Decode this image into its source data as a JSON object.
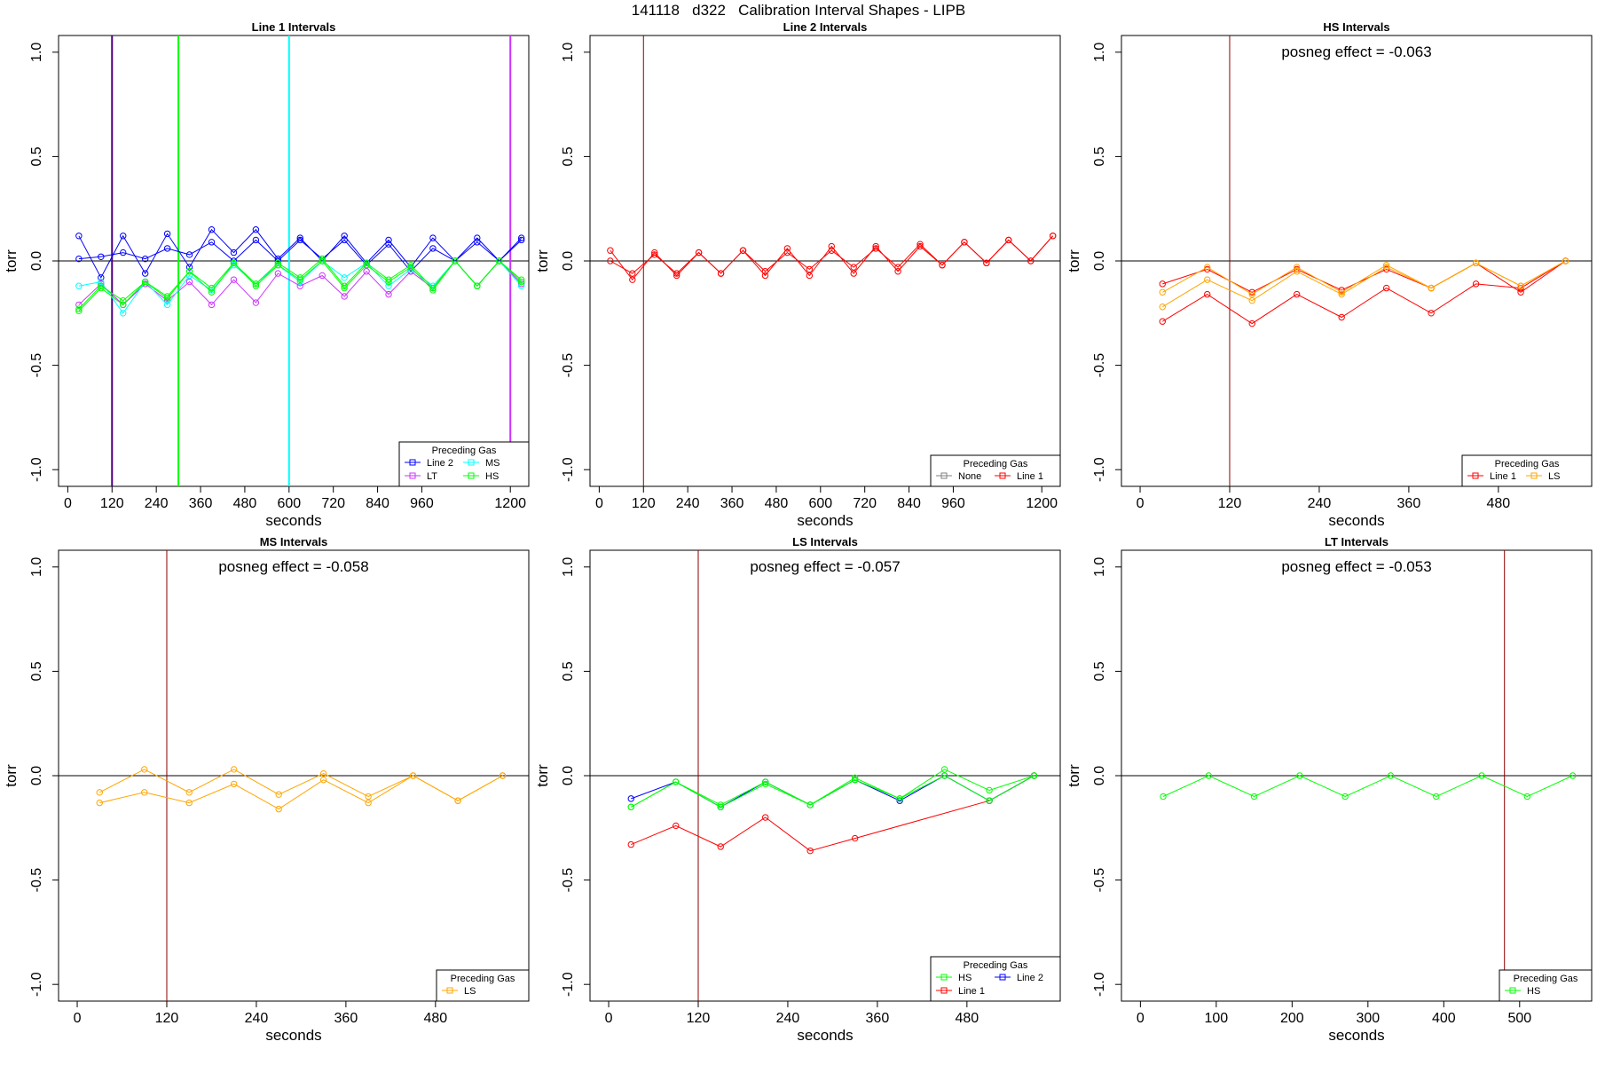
{
  "page_title": "141118   d322   Calibration Interval Shapes - LIPB",
  "colors": {
    "Line 2": "#0000FF",
    "MS": "#00FFFF",
    "LT": "#CC33FF",
    "HS": "#00FF00",
    "None": "#808080",
    "Line 1": "#FF0000",
    "LS": "#FFA500",
    "axis": "#000000",
    "marker_line": "#8B0000"
  },
  "chart_data": [
    {
      "type": "line",
      "title": "Line 1 Intervals",
      "xlabel": "seconds",
      "ylabel": "torr",
      "xlim": [
        -25,
        1250
      ],
      "ylim": [
        -1.08,
        1.08
      ],
      "xticks": [
        0,
        120,
        240,
        360,
        480,
        600,
        720,
        840,
        960,
        1200
      ],
      "yticks": [
        -1.0,
        -0.5,
        0.0,
        0.5,
        1.0
      ],
      "hline": 0,
      "vlines": [
        {
          "x": 120,
          "color": "#4B0082"
        },
        {
          "x": 300,
          "color": "#00FF00"
        },
        {
          "x": 600,
          "color": "#00FFFF"
        },
        {
          "x": 1200,
          "color": "#CC33FF"
        }
      ],
      "legend": {
        "title": "Preceding Gas",
        "position": "bottom-right",
        "entries": [
          "Line 2",
          "LT",
          "MS",
          "HS"
        ]
      },
      "series": [
        {
          "name": "Line 2",
          "x": [
            30,
            90,
            150,
            210,
            270,
            330,
            390,
            450,
            510,
            570,
            630,
            690,
            750,
            810,
            870,
            930,
            990,
            1050,
            1110,
            1170,
            1230
          ],
          "values": [
            0.12,
            -0.08,
            0.12,
            -0.06,
            0.13,
            -0.03,
            0.15,
            0.04,
            0.15,
            0.01,
            0.11,
            0.0,
            0.12,
            -0.01,
            0.1,
            -0.03,
            0.11,
            0.0,
            0.11,
            0.0,
            0.11
          ]
        },
        {
          "name": "Line 2",
          "x": [
            30,
            90,
            150,
            210,
            270,
            330,
            390,
            450,
            510,
            570,
            630,
            690,
            750,
            810,
            870,
            930,
            990,
            1050,
            1110,
            1170,
            1230
          ],
          "values": [
            0.01,
            0.02,
            0.04,
            0.01,
            0.06,
            0.03,
            0.09,
            0.0,
            0.1,
            0.0,
            0.1,
            0.01,
            0.1,
            -0.02,
            0.08,
            -0.05,
            0.06,
            0.0,
            0.09,
            0.0,
            0.1
          ]
        },
        {
          "name": "LT",
          "x": [
            30,
            90,
            150,
            210,
            270,
            330,
            390,
            450,
            510,
            570,
            630,
            690,
            750,
            810,
            870,
            930,
            990,
            1050,
            1110,
            1170,
            1230
          ],
          "values": [
            -0.21,
            -0.11,
            -0.21,
            -0.11,
            -0.19,
            -0.1,
            -0.21,
            -0.09,
            -0.2,
            -0.06,
            -0.12,
            -0.07,
            -0.17,
            -0.05,
            -0.16,
            -0.05,
            -0.13,
            0.0,
            -0.12,
            0.0,
            -0.11
          ]
        },
        {
          "name": "MS",
          "x": [
            30,
            90,
            150,
            210,
            270,
            330,
            390,
            450,
            510,
            570,
            630,
            690,
            750,
            810,
            870,
            930,
            990,
            1050,
            1110,
            1170,
            1230
          ],
          "values": [
            -0.12,
            -0.1,
            -0.25,
            -0.1,
            -0.21,
            -0.07,
            -0.14,
            -0.02,
            -0.11,
            -0.02,
            -0.1,
            0.0,
            -0.08,
            -0.01,
            -0.12,
            -0.04,
            -0.12,
            0.0,
            -0.12,
            0.0,
            -0.12
          ]
        },
        {
          "name": "HS",
          "x": [
            30,
            90,
            150,
            210,
            270,
            330,
            390,
            450,
            510,
            570,
            630,
            690,
            750,
            810,
            870,
            930,
            990,
            1050,
            1110,
            1170,
            1230
          ],
          "values": [
            -0.24,
            -0.13,
            -0.21,
            -0.1,
            -0.18,
            -0.05,
            -0.15,
            -0.01,
            -0.12,
            -0.02,
            -0.09,
            0.0,
            -0.13,
            -0.02,
            -0.1,
            -0.03,
            -0.14,
            0.0,
            -0.12,
            0.0,
            -0.09
          ]
        },
        {
          "name": "HS",
          "x": [
            30,
            90,
            150,
            210,
            270,
            330,
            390,
            450,
            510,
            570,
            630,
            690,
            750,
            810,
            870,
            930,
            990,
            1050,
            1110,
            1170,
            1230
          ],
          "values": [
            -0.23,
            -0.12,
            -0.19,
            -0.1,
            -0.17,
            -0.05,
            -0.13,
            -0.01,
            -0.11,
            -0.01,
            -0.08,
            0.01,
            -0.12,
            -0.01,
            -0.09,
            -0.02,
            -0.13,
            0.0,
            -0.12,
            0.0,
            -0.1
          ]
        }
      ]
    },
    {
      "type": "line",
      "title": "Line 2 Intervals",
      "xlabel": "seconds",
      "ylabel": "torr",
      "xlim": [
        -25,
        1250
      ],
      "ylim": [
        -1.08,
        1.08
      ],
      "xticks": [
        0,
        120,
        240,
        360,
        480,
        600,
        720,
        840,
        960,
        1200
      ],
      "yticks": [
        -1.0,
        -0.5,
        0.0,
        0.5,
        1.0
      ],
      "hline": 0,
      "vlines": [
        {
          "x": 120,
          "color": "#8B0000"
        }
      ],
      "legend": {
        "title": "Preceding Gas",
        "position": "bottom-right",
        "entries": [
          "None",
          "Line 1"
        ]
      },
      "series": [
        {
          "name": "Line 1",
          "x": [
            30,
            90,
            150,
            210,
            270,
            330,
            390,
            450,
            510,
            570,
            630,
            690,
            750,
            810,
            870,
            930,
            990,
            1050,
            1110,
            1170,
            1230
          ],
          "values": [
            0.05,
            -0.09,
            0.04,
            -0.07,
            0.04,
            -0.06,
            0.05,
            -0.07,
            0.06,
            -0.07,
            0.07,
            -0.06,
            0.07,
            -0.05,
            0.07,
            -0.02,
            0.09,
            -0.01,
            0.1,
            0.0,
            0.12
          ]
        },
        {
          "name": "Line 1",
          "x": [
            30,
            90,
            150,
            210,
            270,
            330,
            390,
            450,
            510,
            570,
            630,
            690,
            750,
            810,
            870,
            930,
            990,
            1050,
            1110,
            1170,
            1230
          ],
          "values": [
            0.0,
            -0.06,
            0.03,
            -0.06,
            0.04,
            -0.06,
            0.05,
            -0.05,
            0.04,
            -0.04,
            0.05,
            -0.03,
            0.06,
            -0.03,
            0.08,
            -0.02,
            0.09,
            -0.01,
            0.1,
            0.0,
            0.12
          ]
        }
      ]
    },
    {
      "type": "line",
      "title": "HS Intervals",
      "xlabel": "seconds",
      "ylabel": "torr",
      "annotation": "posneg effect = -0.063",
      "xlim": [
        -25,
        605
      ],
      "ylim": [
        -1.08,
        1.08
      ],
      "xticks": [
        0,
        120,
        240,
        360,
        480
      ],
      "yticks": [
        -1.0,
        -0.5,
        0.0,
        0.5,
        1.0
      ],
      "hline": 0,
      "vlines": [
        {
          "x": 120,
          "color": "#8B0000"
        }
      ],
      "legend": {
        "title": "Preceding Gas",
        "position": "bottom-right",
        "entries": [
          "Line 1",
          "LS"
        ]
      },
      "series": [
        {
          "name": "Line 1",
          "x": [
            30,
            90,
            150,
            210,
            270,
            330,
            390,
            450,
            510,
            570
          ],
          "values": [
            -0.11,
            -0.04,
            -0.15,
            -0.04,
            -0.14,
            -0.04,
            -0.13,
            -0.01,
            -0.15,
            0.0
          ]
        },
        {
          "name": "Line 1",
          "x": [
            30,
            90,
            150,
            210,
            270,
            330,
            390,
            450,
            510,
            570
          ],
          "values": [
            -0.29,
            -0.16,
            -0.3,
            -0.16,
            -0.27,
            -0.13,
            -0.25,
            -0.11,
            -0.13,
            0.0
          ]
        },
        {
          "name": "LS",
          "x": [
            30,
            90,
            150,
            210,
            270,
            330,
            390,
            450,
            510,
            570
          ],
          "values": [
            -0.15,
            -0.03,
            -0.16,
            -0.03,
            -0.15,
            -0.02,
            -0.13,
            -0.01,
            -0.12,
            0.0
          ]
        },
        {
          "name": "LS",
          "x": [
            30,
            90,
            150,
            210,
            270,
            330,
            390,
            450,
            510,
            570
          ],
          "values": [
            -0.22,
            -0.09,
            -0.19,
            -0.05,
            -0.16,
            -0.03,
            -0.13,
            -0.01,
            -0.12,
            0.0
          ]
        }
      ]
    },
    {
      "type": "line",
      "title": "MS Intervals",
      "xlabel": "seconds",
      "ylabel": "torr",
      "annotation": "posneg effect = -0.058",
      "xlim": [
        -25,
        605
      ],
      "ylim": [
        -1.08,
        1.08
      ],
      "xticks": [
        0,
        120,
        240,
        360,
        480
      ],
      "yticks": [
        -1.0,
        -0.5,
        0.0,
        0.5,
        1.0
      ],
      "hline": 0,
      "vlines": [
        {
          "x": 120,
          "color": "#8B0000"
        }
      ],
      "legend": {
        "title": "Preceding Gas",
        "position": "bottom-right",
        "entries": [
          "LS"
        ]
      },
      "series": [
        {
          "name": "LS",
          "x": [
            30,
            90,
            150,
            210,
            270,
            330,
            390,
            450,
            510,
            570
          ],
          "values": [
            -0.08,
            0.03,
            -0.08,
            0.03,
            -0.09,
            0.01,
            -0.1,
            0.0,
            -0.12,
            0.0
          ]
        },
        {
          "name": "LS",
          "x": [
            30,
            90,
            150,
            210,
            270,
            330,
            390,
            450,
            510,
            570
          ],
          "values": [
            -0.13,
            -0.08,
            -0.13,
            -0.04,
            -0.16,
            -0.02,
            -0.13,
            0.0,
            -0.12,
            0.0
          ]
        }
      ]
    },
    {
      "type": "line",
      "title": "LS Intervals",
      "xlabel": "seconds",
      "ylabel": "torr",
      "annotation": "posneg effect = -0.057",
      "xlim": [
        -25,
        605
      ],
      "ylim": [
        -1.08,
        1.08
      ],
      "xticks": [
        0,
        120,
        240,
        360,
        480
      ],
      "yticks": [
        -1.0,
        -0.5,
        0.0,
        0.5,
        1.0
      ],
      "hline": 0,
      "vlines": [
        {
          "x": 120,
          "color": "#8B0000"
        }
      ],
      "legend": {
        "title": "Preceding Gas",
        "position": "bottom-right",
        "entries": [
          "HS",
          "Line 1",
          "Line 2"
        ]
      },
      "series": [
        {
          "name": "Line 1",
          "x": [
            30,
            90,
            150,
            210,
            270,
            330,
            510,
            570
          ],
          "values": [
            -0.33,
            -0.24,
            -0.34,
            -0.2,
            -0.36,
            -0.3,
            -0.12,
            0.0
          ]
        },
        {
          "name": "Line 2",
          "x": [
            30,
            90,
            150,
            210,
            270,
            330,
            390,
            450,
            510,
            570
          ],
          "values": [
            -0.11,
            -0.03,
            -0.15,
            -0.03,
            -0.14,
            -0.02,
            -0.12,
            0.0,
            -0.12,
            0.0
          ]
        },
        {
          "name": "HS",
          "x": [
            30,
            90,
            150,
            210,
            270,
            330,
            390,
            450,
            510,
            570
          ],
          "values": [
            -0.15,
            -0.03,
            -0.15,
            -0.04,
            -0.14,
            -0.01,
            -0.11,
            0.03,
            -0.07,
            0.0
          ]
        },
        {
          "name": "HS",
          "x": [
            30,
            90,
            150,
            210,
            270,
            330,
            390,
            450,
            510,
            570
          ],
          "values": [
            -0.15,
            -0.03,
            -0.14,
            -0.03,
            -0.14,
            -0.02,
            -0.11,
            0.0,
            -0.12,
            0.0
          ]
        }
      ]
    },
    {
      "type": "line",
      "title": "LT Intervals",
      "xlabel": "seconds",
      "ylabel": "torr",
      "annotation": "posneg effect = -0.053",
      "xlim": [
        -25,
        595
      ],
      "ylim": [
        -1.08,
        1.08
      ],
      "xticks": [
        0,
        100,
        200,
        300,
        400,
        500
      ],
      "yticks": [
        -1.0,
        -0.5,
        0.0,
        0.5,
        1.0
      ],
      "hline": 0,
      "vlines": [
        {
          "x": 480,
          "color": "#8B0000"
        }
      ],
      "legend": {
        "title": "Preceding Gas",
        "position": "bottom-right",
        "entries": [
          "HS"
        ]
      },
      "series": [
        {
          "name": "HS",
          "x": [
            30,
            90,
            150,
            210,
            270,
            330,
            390,
            450,
            510,
            570
          ],
          "values": [
            -0.1,
            0.0,
            -0.1,
            0.0,
            -0.1,
            0.0,
            -0.1,
            0.0,
            -0.1,
            0.0
          ]
        }
      ]
    }
  ]
}
